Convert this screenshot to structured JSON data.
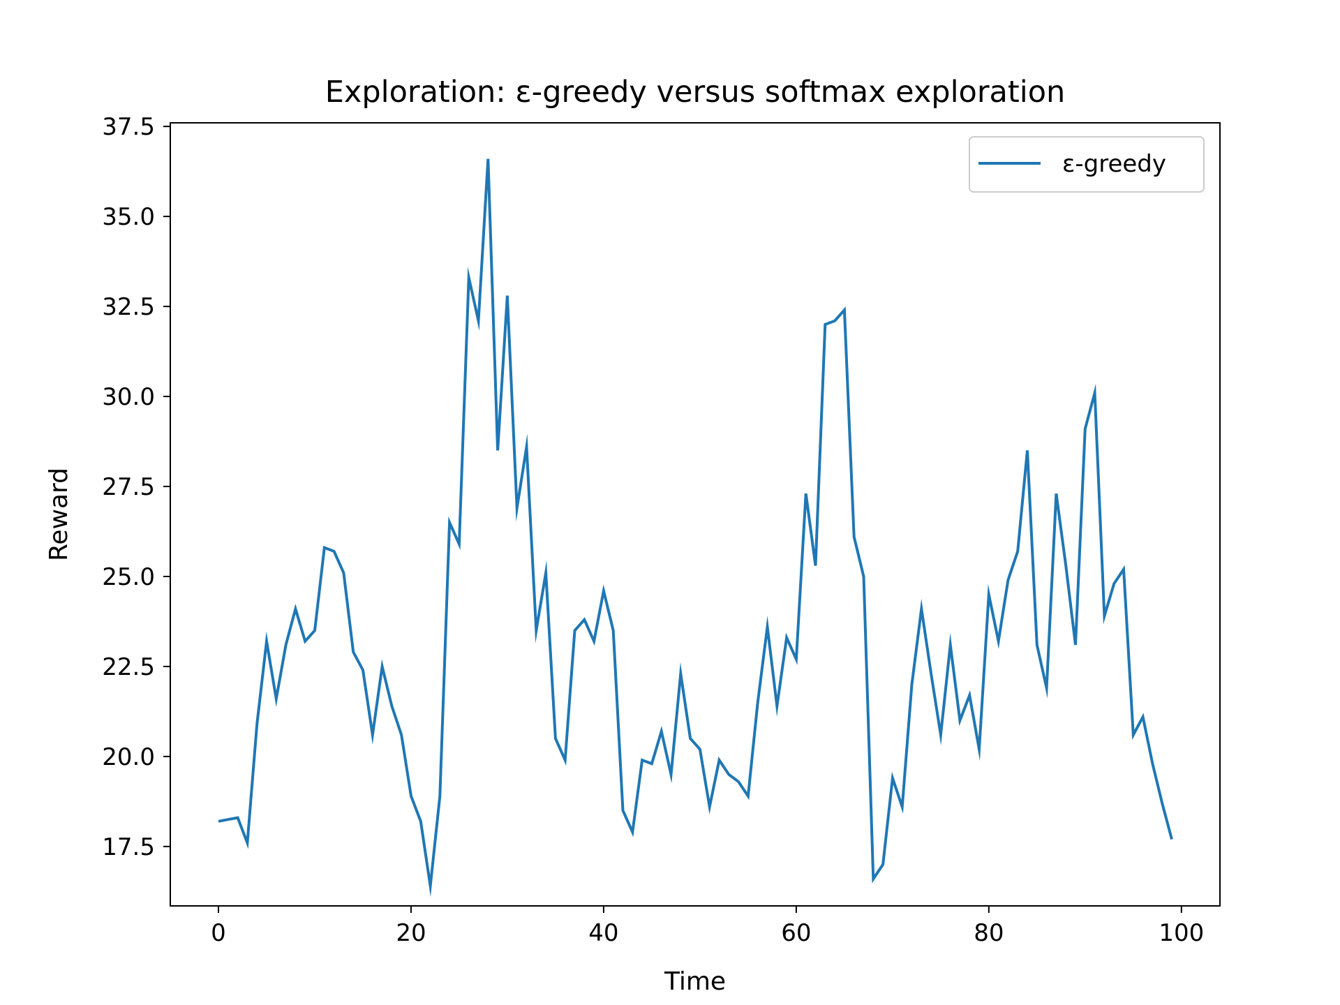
{
  "chart_data": {
    "type": "line",
    "title": "Exploration: ε-greedy versus softmax exploration",
    "xlabel": "Time",
    "ylabel": "Reward",
    "xlim": [
      -5,
      104
    ],
    "ylim": [
      15.85,
      37.6
    ],
    "xticks": [
      0,
      20,
      40,
      60,
      80,
      100
    ],
    "yticks": [
      17.5,
      20.0,
      22.5,
      25.0,
      27.5,
      30.0,
      32.5,
      35.0,
      37.5
    ],
    "ytick_labels": [
      "17.5",
      "20.0",
      "22.5",
      "25.0",
      "27.5",
      "30.0",
      "32.5",
      "35.0",
      "37.5"
    ],
    "grid": false,
    "legend": {
      "placement": "top-right",
      "entries": [
        "ε-greedy"
      ]
    },
    "series": [
      {
        "name": "ε-greedy",
        "color": "#1f77b4",
        "x": [
          0,
          1,
          2,
          3,
          4,
          5,
          6,
          7,
          8,
          9,
          10,
          11,
          12,
          13,
          14,
          15,
          16,
          17,
          18,
          19,
          20,
          21,
          22,
          23,
          24,
          25,
          26,
          27,
          28,
          29,
          30,
          31,
          32,
          33,
          34,
          35,
          36,
          37,
          38,
          39,
          40,
          41,
          42,
          43,
          44,
          45,
          46,
          47,
          48,
          49,
          50,
          51,
          52,
          53,
          54,
          55,
          56,
          57,
          58,
          59,
          60,
          61,
          62,
          63,
          64,
          65,
          66,
          67,
          68,
          69,
          70,
          71,
          72,
          73,
          74,
          75,
          76,
          77,
          78,
          79,
          80,
          81,
          82,
          83,
          84,
          85,
          86,
          87,
          88,
          89,
          90,
          91,
          92,
          93,
          94,
          95,
          96,
          97,
          98,
          99
        ],
        "values": [
          18.2,
          18.25,
          18.3,
          17.6,
          20.9,
          23.2,
          21.6,
          23.1,
          24.1,
          23.2,
          23.5,
          25.8,
          25.7,
          25.1,
          22.9,
          22.4,
          20.6,
          22.5,
          21.4,
          20.6,
          18.9,
          18.2,
          16.4,
          18.9,
          26.5,
          25.9,
          33.3,
          32.1,
          36.6,
          28.5,
          32.8,
          26.9,
          28.6,
          23.5,
          25.1,
          20.5,
          19.9,
          23.5,
          23.8,
          23.2,
          24.6,
          23.5,
          18.5,
          17.9,
          19.9,
          19.8,
          20.7,
          19.5,
          22.3,
          20.5,
          20.2,
          18.6,
          19.9,
          19.5,
          19.3,
          18.9,
          21.5,
          23.6,
          21.4,
          23.3,
          22.7,
          27.3,
          25.3,
          32.0,
          32.1,
          32.4,
          26.1,
          25.0,
          16.6,
          17.0,
          19.4,
          18.6,
          22.0,
          24.1,
          22.3,
          20.6,
          23.1,
          21.0,
          21.7,
          20.2,
          24.5,
          23.2,
          24.9,
          25.7,
          28.5,
          23.1,
          21.9,
          27.3,
          25.3,
          23.1,
          29.1,
          30.1,
          23.9,
          24.8,
          25.2,
          20.6,
          21.1,
          19.8,
          18.7,
          17.7
        ]
      }
    ]
  }
}
